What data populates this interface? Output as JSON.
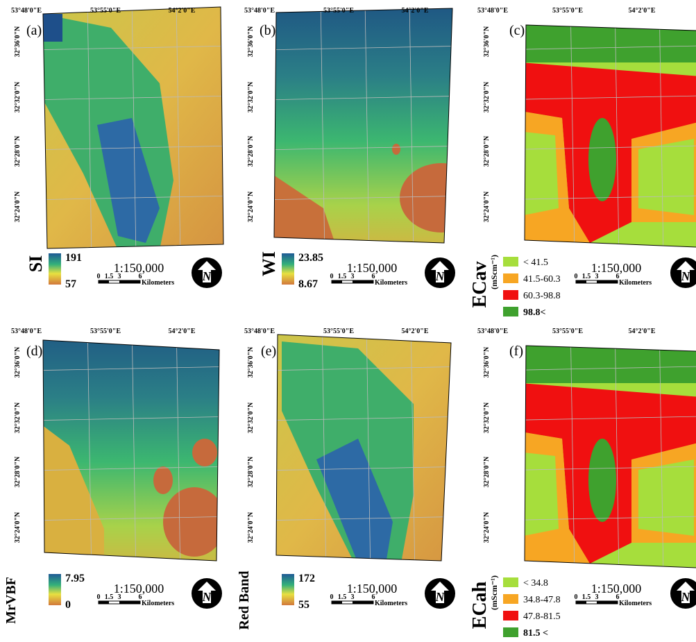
{
  "grid_labels": {
    "lon": [
      "53°48'0\"E",
      "53°55'0\"E",
      "54°2'0\"E"
    ],
    "lat": [
      "32°36'0\"N",
      "32°32'0\"N",
      "32°28'0\"N",
      "32°24'0\"N"
    ]
  },
  "scale_text": "1:150,000",
  "scalebar_ticks": [
    0,
    1.5,
    3,
    6
  ],
  "scalebar_unit": "Kilometers",
  "north_label": "N",
  "panels": [
    {
      "label": "(a)",
      "legend": {
        "kind": "continuous",
        "title": "SI",
        "max": 191,
        "min": 57
      }
    },
    {
      "label": "(b)",
      "legend": {
        "kind": "continuous",
        "title": "WI",
        "max": 23.85,
        "min": 8.67
      }
    },
    {
      "label": "(c)",
      "legend": {
        "kind": "classes",
        "title": "ECav",
        "unit": "(mScm⁻¹)",
        "classes": [
          {
            "text": "< 41.5",
            "color": "#a6de3c"
          },
          {
            "text": "41.5-60.3",
            "color": "#f7a623"
          },
          {
            "text": "60.3-98.8",
            "color": "#f01010"
          },
          {
            "text": "98.8<",
            "color": "#3fa12e"
          }
        ]
      }
    },
    {
      "label": "(d)",
      "legend": {
        "kind": "continuous",
        "title": "MrVBF",
        "max": 7.95,
        "min": 0
      }
    },
    {
      "label": "(e)",
      "legend": {
        "kind": "continuous",
        "title": "Red Band",
        "max": 172,
        "min": 55
      }
    },
    {
      "label": "(f)",
      "legend": {
        "kind": "classes",
        "title": "ECah",
        "unit": "(mScm⁻¹)",
        "classes": [
          {
            "text": "< 34.8",
            "color": "#a6de3c"
          },
          {
            "text": "34.8-47.8",
            "color": "#f7a623"
          },
          {
            "text": "47.8-81.5",
            "color": "#f01010"
          },
          {
            "text": "81.5 <",
            "color": "#3fa12e"
          }
        ]
      }
    }
  ]
}
